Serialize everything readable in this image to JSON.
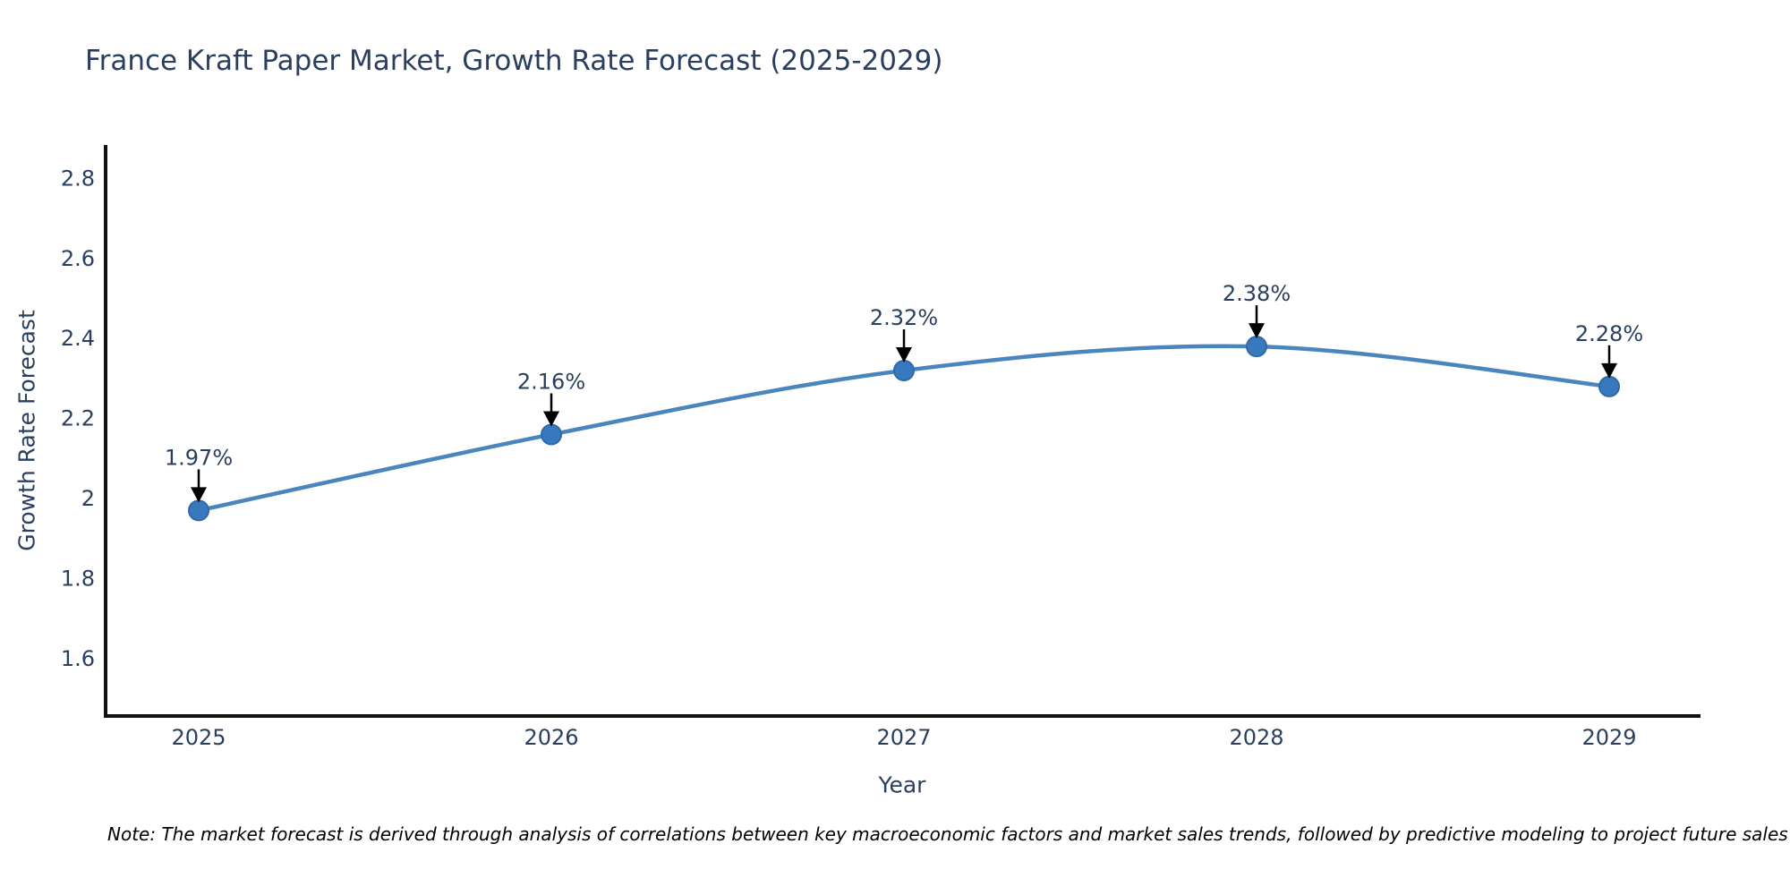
{
  "chart": {
    "title": "France Kraft Paper Market, Growth Rate Forecast (2025-2029)",
    "xlabel": "Year",
    "ylabel": "Growth Rate Forecast",
    "note": "Note: The market forecast is derived through analysis of correlations between key macroeconomic factors and market sales trends, followed by predictive modeling to project future sales"
  },
  "chart_data": {
    "type": "line",
    "title": "France Kraft Paper Market, Growth Rate Forecast (2025-2029)",
    "xlabel": "Year",
    "ylabel": "Growth Rate Forecast",
    "x": [
      2025,
      2026,
      2027,
      2028,
      2029
    ],
    "values": [
      1.97,
      2.16,
      2.32,
      2.38,
      2.28
    ],
    "point_labels": [
      "1.97%",
      "2.16%",
      "2.32%",
      "2.38%",
      "2.28%"
    ],
    "x_tick_labels": [
      "2025",
      "2026",
      "2027",
      "2028",
      "2029"
    ],
    "y_ticks": [
      1.6,
      1.8,
      2.0,
      2.2,
      2.4,
      2.6,
      2.8
    ],
    "y_tick_labels": [
      "1.6",
      "1.8",
      "2",
      "2.2",
      "2.4",
      "2.6",
      "2.8"
    ],
    "ylim": [
      1.45,
      2.88
    ],
    "grid": "off",
    "legend": "none",
    "line_shape": "spline",
    "colors": {
      "line": "#4a86bd",
      "marker_fill": "#3879bd",
      "marker_edge": "#2e6aa8",
      "axis_line": "#111111",
      "text": "#2a3f5f",
      "annotation_text": "#2a3f5f",
      "annotation_arrow": "#000000",
      "note_text": "#000000",
      "background": "#ffffff"
    }
  }
}
